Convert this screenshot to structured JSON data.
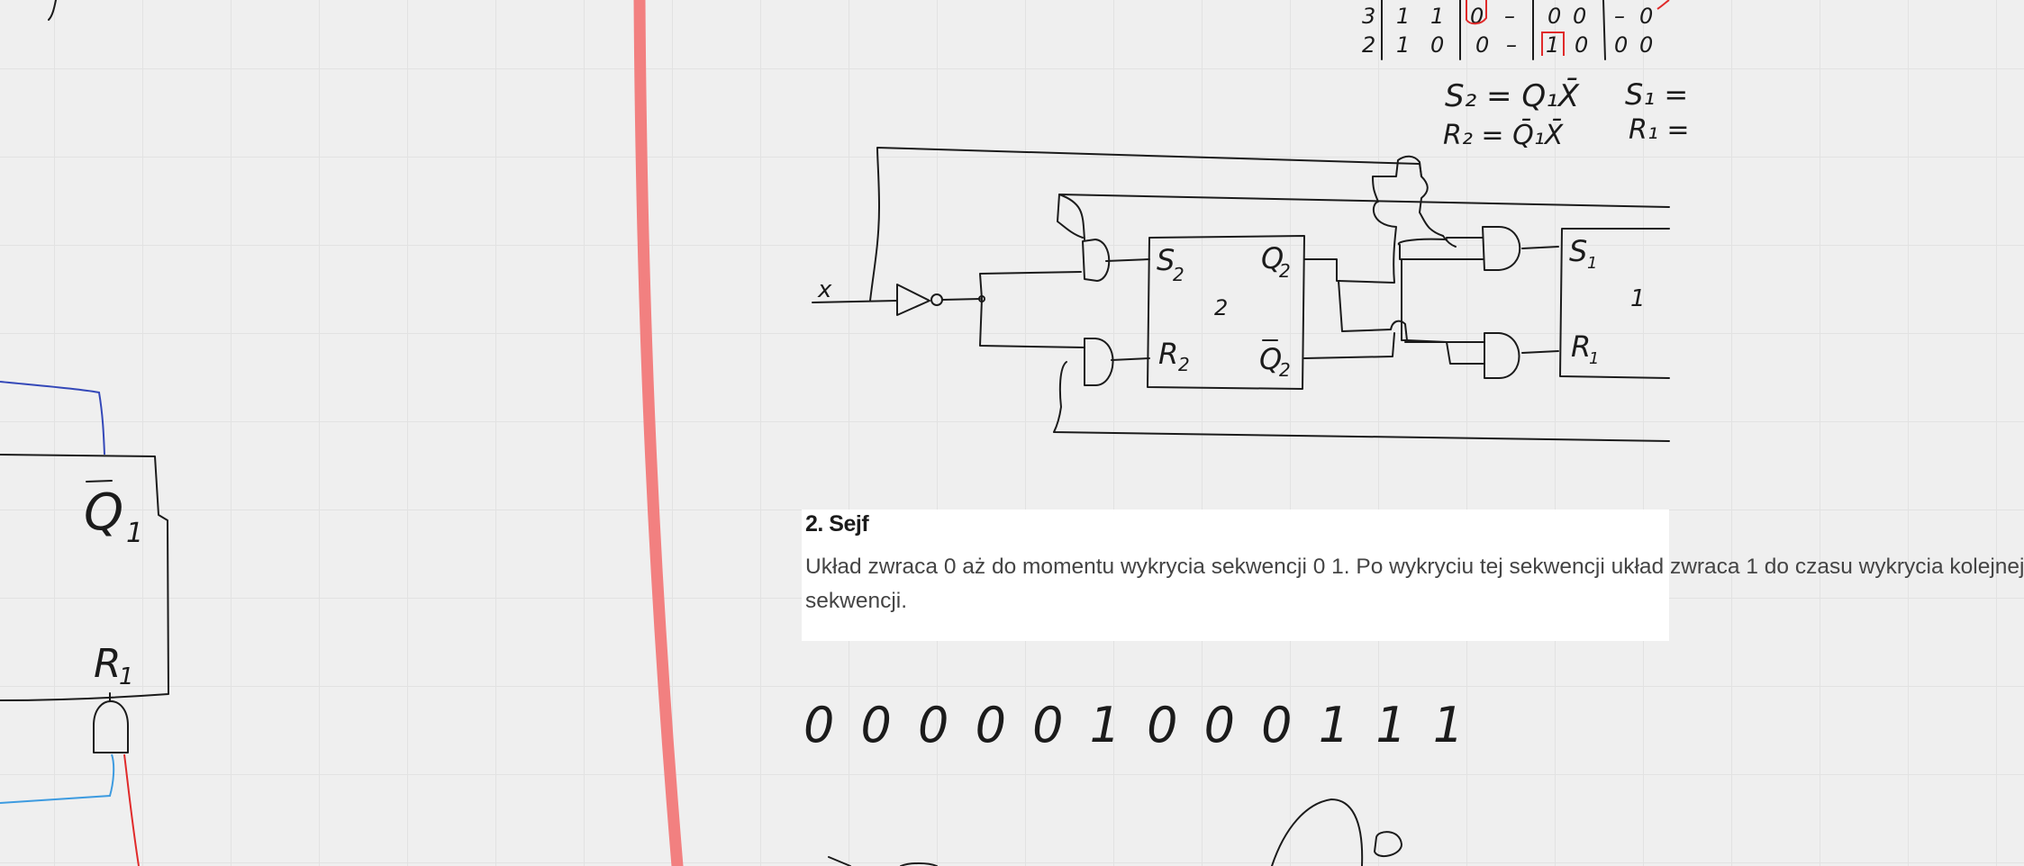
{
  "canvas": {
    "background": "#efefef",
    "divider_color": "#f28080",
    "ink_color": "#1b1b1b",
    "blue_wire": "#3448b8",
    "light_blue_wire": "#3d9be0",
    "red_wire": "#e02a2a"
  },
  "left_circuit": {
    "q1_bar_label": "Q",
    "q1_bar_subscript": "1",
    "r1_label": "R",
    "r1_subscript": "1"
  },
  "karnaugh": {
    "rows": [
      {
        "index": "3",
        "a": "1",
        "b": "1",
        "c": "0",
        "d": "–",
        "e": "0",
        "f": "0",
        "g": "–",
        "h": "0"
      },
      {
        "index": "2",
        "a": "1",
        "b": "0",
        "c": "0",
        "d": "–",
        "e": "1",
        "f": "0",
        "g": "0",
        "h": "0"
      }
    ]
  },
  "equations": {
    "s2": "S₂ = Q₁X̄",
    "r2": "R₂ = Q̄₁X̄",
    "s1": "S₁ =",
    "r1": "R₁ ="
  },
  "circuit": {
    "input_label": "x",
    "ff2": {
      "s": "S",
      "s_sub": "2",
      "q": "Q",
      "q_sub": "2",
      "number": "2",
      "r": "R",
      "r_sub": "2",
      "qbar": "Q",
      "qbar_sub": "2"
    },
    "ff1": {
      "s": "S",
      "s_sub": "1",
      "number": "1",
      "r": "R",
      "r_sub": "1"
    }
  },
  "task": {
    "title": "2. Sejf",
    "line1": "Układ zwraca 0 aż do momentu wykrycia sekwencji 0 1. Po wykryciu tej sekwencji układ zwraca 1 do czasu wykrycia kolejnej",
    "line2": "sekwencji."
  },
  "sketch": {
    "sequence": "0 0 0 0 0 1 0 0 0 1 1 1"
  }
}
